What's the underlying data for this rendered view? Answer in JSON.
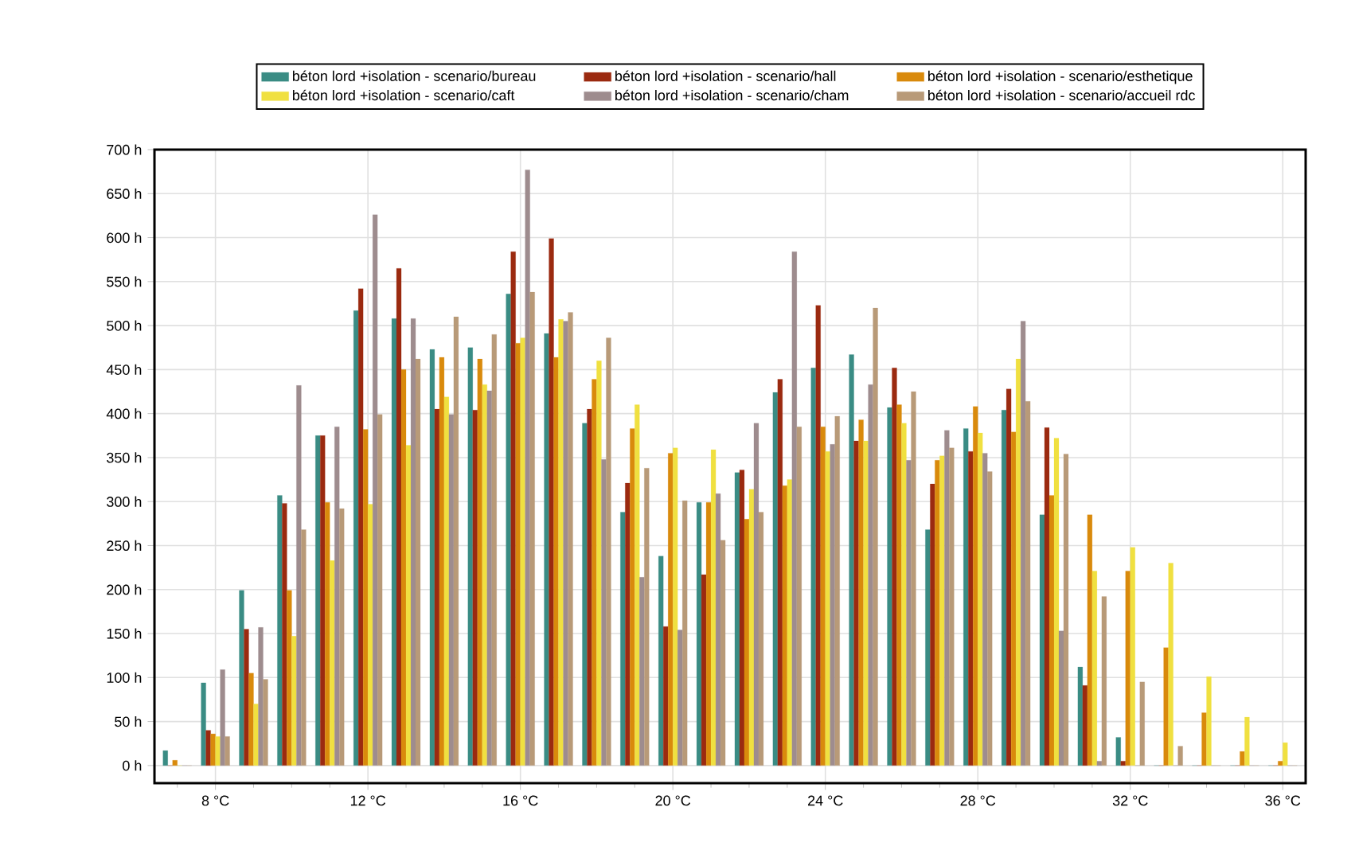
{
  "chart_data": {
    "type": "bar",
    "x": [
      7,
      8,
      9,
      10,
      11,
      12,
      13,
      14,
      15,
      16,
      17,
      18,
      19,
      20,
      21,
      22,
      23,
      24,
      25,
      26,
      27,
      28,
      29,
      30,
      31,
      32,
      33,
      34,
      35,
      36
    ],
    "series": [
      {
        "name": "béton lord +isolation - scenario/bureau",
        "color": "#3a8c84",
        "values": [
          17,
          94,
          199,
          307,
          375,
          517,
          508,
          473,
          475,
          536,
          491,
          389,
          288,
          238,
          299,
          333,
          424,
          452,
          467,
          407,
          268,
          383,
          404,
          285,
          112,
          32,
          0,
          0,
          0,
          0
        ]
      },
      {
        "name": "béton lord +isolation - scenario/hall",
        "color": "#9b2a10",
        "values": [
          0,
          40,
          155,
          298,
          375,
          542,
          565,
          405,
          404,
          584,
          599,
          405,
          321,
          158,
          217,
          336,
          439,
          523,
          369,
          452,
          320,
          357,
          428,
          384,
          91,
          5,
          0,
          0,
          0,
          0
        ]
      },
      {
        "name": "béton lord +isolation - scenario/esthetique",
        "color": "#d98a0c",
        "values": [
          6,
          36,
          105,
          199,
          299,
          382,
          450,
          464,
          462,
          480,
          464,
          439,
          383,
          355,
          299,
          280,
          318,
          385,
          393,
          410,
          347,
          408,
          379,
          307,
          285,
          221,
          134,
          60,
          16,
          5
        ]
      },
      {
        "name": "béton lord +isolation - scenario/caft",
        "color": "#f0e040",
        "values": [
          0,
          33,
          70,
          147,
          233,
          297,
          364,
          419,
          433,
          486,
          507,
          460,
          410,
          361,
          359,
          314,
          325,
          357,
          369,
          389,
          352,
          378,
          462,
          372,
          221,
          248,
          230,
          101,
          55,
          26
        ]
      },
      {
        "name": "béton lord +isolation - scenario/cham",
        "color": "#9e8c8e",
        "values": [
          0,
          109,
          157,
          432,
          385,
          626,
          508,
          399,
          426,
          677,
          505,
          348,
          214,
          154,
          309,
          389,
          584,
          365,
          433,
          347,
          381,
          355,
          505,
          153,
          5,
          0,
          0,
          0,
          0,
          0
        ]
      },
      {
        "name": "béton lord +isolation - scenario/accueil rdc",
        "color": "#b89a78",
        "values": [
          0,
          33,
          98,
          268,
          292,
          399,
          462,
          510,
          490,
          538,
          515,
          486,
          338,
          301,
          256,
          288,
          385,
          397,
          520,
          425,
          361,
          334,
          414,
          354,
          192,
          95,
          22,
          0,
          0,
          0
        ]
      }
    ],
    "xlim": [
      6.4,
      36.6
    ],
    "xticks": [
      {
        "value": 7,
        "label": null
      },
      {
        "value": 8,
        "label": "8 °C"
      },
      {
        "value": 9,
        "label": null
      },
      {
        "value": 10,
        "label": null
      },
      {
        "value": 11,
        "label": null
      },
      {
        "value": 12,
        "label": "12 °C"
      },
      {
        "value": 13,
        "label": null
      },
      {
        "value": 14,
        "label": null
      },
      {
        "value": 15,
        "label": null
      },
      {
        "value": 16,
        "label": "16 °C"
      },
      {
        "value": 17,
        "label": null
      },
      {
        "value": 18,
        "label": null
      },
      {
        "value": 19,
        "label": null
      },
      {
        "value": 20,
        "label": "20 °C"
      },
      {
        "value": 21,
        "label": null
      },
      {
        "value": 22,
        "label": null
      },
      {
        "value": 23,
        "label": null
      },
      {
        "value": 24,
        "label": "24 °C"
      },
      {
        "value": 25,
        "label": null
      },
      {
        "value": 26,
        "label": null
      },
      {
        "value": 27,
        "label": null
      },
      {
        "value": 28,
        "label": "28 °C"
      },
      {
        "value": 29,
        "label": null
      },
      {
        "value": 30,
        "label": null
      },
      {
        "value": 31,
        "label": null
      },
      {
        "value": 32,
        "label": "32 °C"
      },
      {
        "value": 33,
        "label": null
      },
      {
        "value": 34,
        "label": null
      },
      {
        "value": 35,
        "label": null
      },
      {
        "value": 36,
        "label": "36 °C"
      }
    ],
    "ylim": [
      -20,
      700
    ],
    "yticks": [
      {
        "value": 0,
        "label": "0 h"
      },
      {
        "value": 50,
        "label": "50 h"
      },
      {
        "value": 100,
        "label": "100 h"
      },
      {
        "value": 150,
        "label": "150 h"
      },
      {
        "value": 200,
        "label": "200 h"
      },
      {
        "value": 250,
        "label": "250 h"
      },
      {
        "value": 300,
        "label": "300 h"
      },
      {
        "value": 350,
        "label": "350 h"
      },
      {
        "value": 400,
        "label": "400 h"
      },
      {
        "value": 450,
        "label": "450 h"
      },
      {
        "value": 500,
        "label": "500 h"
      },
      {
        "value": 550,
        "label": "550 h"
      },
      {
        "value": 600,
        "label": "600 h"
      },
      {
        "value": 650,
        "label": "650 h"
      },
      {
        "value": 700,
        "label": "700 h"
      }
    ],
    "grid": true,
    "legend": "top"
  }
}
